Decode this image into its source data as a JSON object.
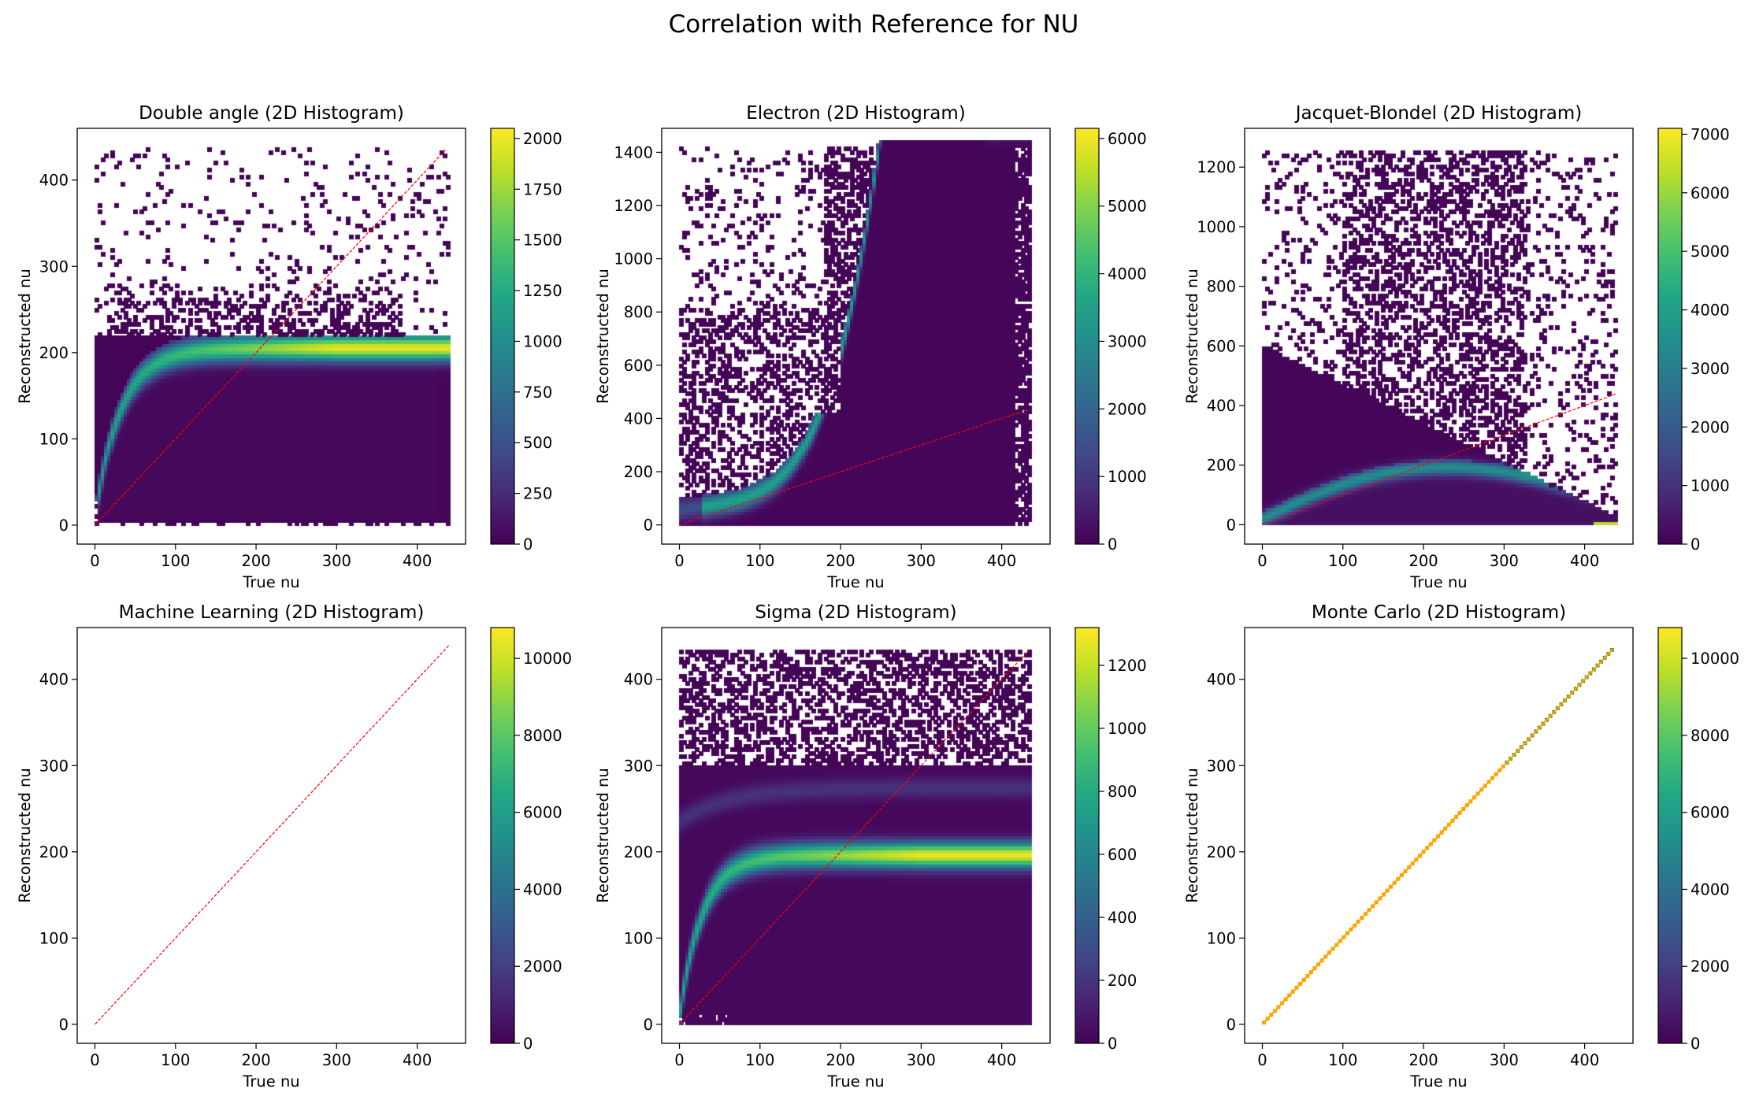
{
  "figure": {
    "title": "Correlation with Reference for NU"
  },
  "colors": {
    "viridis": [
      "#440154",
      "#482475",
      "#414487",
      "#355f8d",
      "#2a788e",
      "#21918c",
      "#22a884",
      "#44bf70",
      "#7ad151",
      "#bddf26",
      "#fde725"
    ],
    "reference_line": "#ff0000",
    "mc_points": "#ffa500"
  },
  "chart_data": [
    {
      "type": "heatmap",
      "title": "Double angle (2D Histogram)",
      "xlabel": "True nu",
      "ylabel": "Reconstructed nu",
      "xlim": [
        -22,
        460
      ],
      "ylim": [
        -22,
        460
      ],
      "xticks": [
        0,
        100,
        200,
        300,
        400
      ],
      "yticks": [
        0,
        100,
        200,
        300,
        400
      ],
      "colorbar": {
        "min": 0,
        "max": 2050,
        "ticks": [
          0,
          250,
          500,
          750,
          1000,
          1250,
          1500,
          1750,
          2000
        ]
      },
      "reference_line": [
        [
          0,
          0
        ],
        [
          435,
          435
        ]
      ],
      "model": "double_angle"
    },
    {
      "type": "heatmap",
      "title": "Electron (2D Histogram)",
      "xlabel": "True nu",
      "ylabel": "Reconstructed nu",
      "xlim": [
        -22,
        460
      ],
      "ylim": [
        -72,
        1490
      ],
      "xticks": [
        0,
        100,
        200,
        300,
        400
      ],
      "yticks": [
        0,
        200,
        400,
        600,
        800,
        1000,
        1200,
        1400
      ],
      "colorbar": {
        "min": 0,
        "max": 6150,
        "ticks": [
          0,
          1000,
          2000,
          3000,
          4000,
          5000,
          6000
        ]
      },
      "reference_line": [
        [
          0,
          0
        ],
        [
          435,
          435
        ]
      ],
      "model": "electron"
    },
    {
      "type": "heatmap",
      "title": "Jacquet-Blondel (2D Histogram)",
      "xlabel": "True nu",
      "ylabel": "Reconstructed nu",
      "xlim": [
        -22,
        460
      ],
      "ylim": [
        -65,
        1330
      ],
      "xticks": [
        0,
        100,
        200,
        300,
        400
      ],
      "yticks": [
        0,
        200,
        400,
        600,
        800,
        1000,
        1200
      ],
      "colorbar": {
        "min": 0,
        "max": 7100,
        "ticks": [
          0,
          1000,
          2000,
          3000,
          4000,
          5000,
          6000,
          7000
        ]
      },
      "reference_line": [
        [
          0,
          0
        ],
        [
          440,
          440
        ]
      ],
      "model": "jacquet_blondel"
    },
    {
      "type": "heatmap",
      "title": "Machine Learning (2D Histogram)",
      "xlabel": "True nu",
      "ylabel": "Reconstructed nu",
      "xlim": [
        -22,
        460
      ],
      "ylim": [
        -22,
        460
      ],
      "xticks": [
        0,
        100,
        200,
        300,
        400
      ],
      "yticks": [
        0,
        100,
        200,
        300,
        400
      ],
      "colorbar": {
        "min": 0,
        "max": 10800,
        "ticks": [
          0,
          2000,
          4000,
          6000,
          8000,
          10000
        ]
      },
      "reference_line": [
        [
          0,
          0
        ],
        [
          440,
          440
        ]
      ],
      "model": "empty"
    },
    {
      "type": "heatmap",
      "title": "Sigma (2D Histogram)",
      "xlabel": "True nu",
      "ylabel": "Reconstructed nu",
      "xlim": [
        -22,
        460
      ],
      "ylim": [
        -22,
        460
      ],
      "xticks": [
        0,
        100,
        200,
        300,
        400
      ],
      "yticks": [
        0,
        100,
        200,
        300,
        400
      ],
      "colorbar": {
        "min": 0,
        "max": 1320,
        "ticks": [
          0,
          200,
          400,
          600,
          800,
          1000,
          1200
        ]
      },
      "reference_line": [
        [
          0,
          0
        ],
        [
          435,
          435
        ]
      ],
      "model": "sigma"
    },
    {
      "type": "heatmap",
      "title": "Monte Carlo (2D Histogram)",
      "xlabel": "True nu",
      "ylabel": "Reconstructed nu",
      "xlim": [
        -22,
        460
      ],
      "ylim": [
        -22,
        460
      ],
      "xticks": [
        0,
        100,
        200,
        300,
        400
      ],
      "yticks": [
        0,
        100,
        200,
        300,
        400
      ],
      "colorbar": {
        "min": 0,
        "max": 10800,
        "ticks": [
          0,
          2000,
          4000,
          6000,
          8000,
          10000
        ]
      },
      "reference_line": [
        [
          2,
          2
        ],
        [
          435,
          435
        ]
      ],
      "model": "monte_carlo"
    }
  ]
}
